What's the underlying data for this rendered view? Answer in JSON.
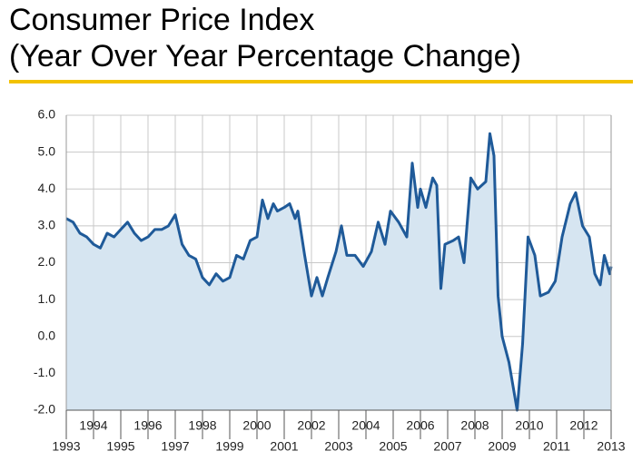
{
  "chart_data": {
    "type": "line",
    "title": "Consumer Price Index",
    "subtitle": "(Year Over Year Percentage Change)",
    "series": [
      {
        "name": "CPI",
        "color": "#1f5a99",
        "fill": "#d6e5f1",
        "x": [
          1993.0,
          1993.25,
          1993.5,
          1993.75,
          1994.0,
          1994.25,
          1994.5,
          1994.75,
          1995.0,
          1995.25,
          1995.5,
          1995.75,
          1996.0,
          1996.25,
          1996.5,
          1996.75,
          1997.0,
          1997.25,
          1997.5,
          1997.75,
          1998.0,
          1998.25,
          1998.5,
          1998.75,
          1999.0,
          1999.25,
          1999.5,
          1999.75,
          2000.0,
          2000.2,
          2000.4,
          2000.6,
          2000.75,
          2001.0,
          2001.2,
          2001.4,
          2001.5,
          2001.75,
          2002.0,
          2002.2,
          2002.4,
          2002.6,
          2002.9,
          2003.1,
          2003.3,
          2003.6,
          2003.9,
          2004.2,
          2004.45,
          2004.7,
          2004.9,
          2005.2,
          2005.5,
          2005.7,
          2005.9,
          2006.0,
          2006.2,
          2006.45,
          2006.6,
          2006.75,
          2006.9,
          2007.2,
          2007.4,
          2007.6,
          2007.85,
          2008.1,
          2008.4,
          2008.55,
          2008.7,
          2008.85,
          2009.0,
          2009.25,
          2009.55,
          2009.75,
          2009.95,
          2010.2,
          2010.4,
          2010.7,
          2010.95,
          2011.2,
          2011.5,
          2011.7,
          2011.95,
          2012.2,
          2012.4,
          2012.6,
          2012.75,
          2012.95,
          2013.0
        ],
        "values": [
          3.2,
          3.1,
          2.8,
          2.7,
          2.5,
          2.4,
          2.8,
          2.7,
          2.9,
          3.1,
          2.8,
          2.6,
          2.7,
          2.9,
          2.9,
          3.0,
          3.3,
          2.5,
          2.2,
          2.1,
          1.6,
          1.4,
          1.7,
          1.5,
          1.6,
          2.2,
          2.1,
          2.6,
          2.7,
          3.7,
          3.2,
          3.6,
          3.4,
          3.5,
          3.6,
          3.2,
          3.4,
          2.2,
          1.1,
          1.6,
          1.1,
          1.6,
          2.3,
          3.0,
          2.2,
          2.2,
          1.9,
          2.3,
          3.1,
          2.5,
          3.4,
          3.1,
          2.7,
          4.7,
          3.5,
          4.0,
          3.5,
          4.3,
          4.1,
          1.3,
          2.5,
          2.6,
          2.7,
          2.0,
          4.3,
          4.0,
          4.2,
          5.5,
          4.9,
          1.1,
          0.0,
          -0.7,
          -2.0,
          -0.2,
          2.7,
          2.2,
          1.1,
          1.2,
          1.5,
          2.7,
          3.6,
          3.9,
          3.0,
          2.7,
          1.7,
          1.4,
          2.2,
          1.7,
          1.9
        ]
      }
    ],
    "xlim": [
      1993,
      2013
    ],
    "xticks": [
      1993,
      1994,
      1995,
      1996,
      1997,
      1998,
      1999,
      2000,
      2001,
      2002,
      2003,
      2004,
      2005,
      2006,
      2007,
      2008,
      2009,
      2010,
      2011,
      2012,
      2013
    ],
    "ylim": [
      -2,
      6
    ],
    "yticks": [
      {
        "value": -2,
        "label": "-2.0"
      },
      {
        "value": -1,
        "label": "-1.0"
      },
      {
        "value": 0,
        "label": "0.0"
      },
      {
        "value": 1,
        "label": "1.0"
      },
      {
        "value": 2,
        "label": "2.0"
      },
      {
        "value": 3,
        "label": "3.0"
      },
      {
        "value": 4,
        "label": "4.0"
      },
      {
        "value": 5,
        "label": "5.0"
      },
      {
        "value": 6,
        "label": "6.0"
      }
    ],
    "grid": true
  }
}
